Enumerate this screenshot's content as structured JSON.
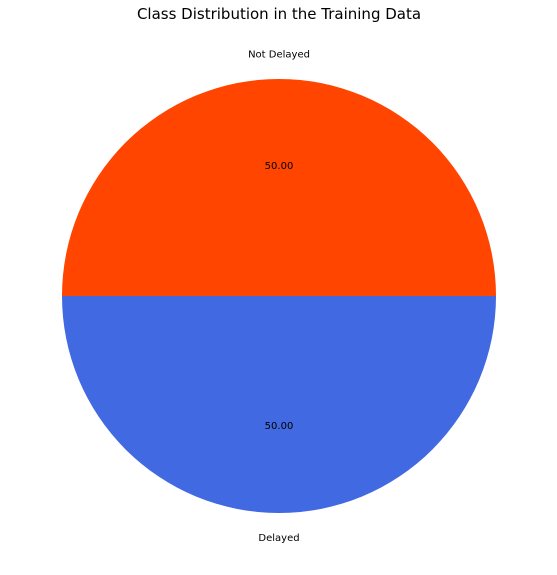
{
  "chart_data": {
    "type": "pie",
    "title": "Class Distribution in the Training Data",
    "slices": [
      {
        "label": "Not Delayed",
        "value": 50.0,
        "display": "50.00",
        "color": "#ff4500"
      },
      {
        "label": "Delayed",
        "value": 50.0,
        "display": "50.00",
        "color": "#4169e1"
      }
    ]
  }
}
